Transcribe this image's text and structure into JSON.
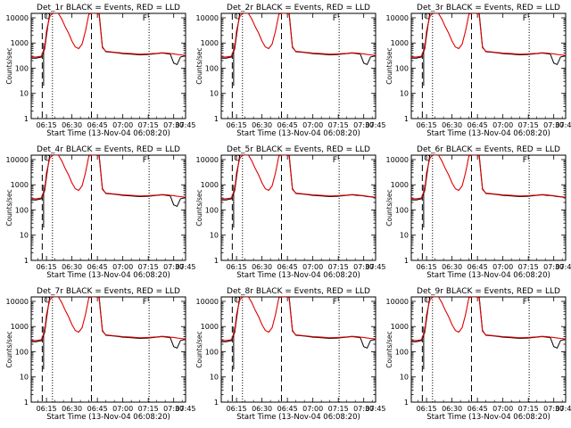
{
  "chart_data": [
    {
      "type": "line",
      "title": "Det_1r BLACK = Events, RED = LLD",
      "xlabel": "Start Time (13-Nov-04 06:08:20)",
      "ylabel": "Counts/sec",
      "xtick_labels": [
        "06:15",
        "06:30",
        "06:45",
        "07:00",
        "07:15",
        "07:30",
        "07:45"
      ],
      "ytick_labels": [
        "1",
        "10",
        "100",
        "1000",
        "10000"
      ],
      "flare_marker": "F",
      "variant": "low",
      "legend": "none",
      "grid": false,
      "yscale": "log",
      "xlim_minutes": [
        6,
        97
      ],
      "ylim": [
        1,
        15000
      ]
    },
    {
      "type": "line",
      "title": "Det_2r BLACK = Events, RED = LLD",
      "xlabel": "Start Time (13-Nov-04 06:08:20)",
      "ylabel": "Counts/sec",
      "xtick_labels": [
        "06:15",
        "06:30",
        "06:45",
        "07:00",
        "07:15",
        "07:30",
        "07:45"
      ],
      "ytick_labels": [
        "1",
        "10",
        "100",
        "1000",
        "10000"
      ],
      "flare_marker": "F",
      "variant": "low",
      "legend": "none",
      "grid": false,
      "yscale": "log",
      "xlim_minutes": [
        6,
        97
      ],
      "ylim": [
        1,
        15000
      ]
    },
    {
      "type": "line",
      "title": "Det_3r BLACK = Events, RED = LLD",
      "xlabel": "Start Time (13-Nov-04 06:08:20)",
      "ylabel": "Counts/sec",
      "xtick_labels": [
        "06:15",
        "06:30",
        "06:45",
        "07:00",
        "07:15",
        "07:30",
        "07:45"
      ],
      "ytick_labels": [
        "1",
        "10",
        "100",
        "1000",
        "10000"
      ],
      "flare_marker": "F",
      "variant": "low",
      "legend": "none",
      "grid": false,
      "yscale": "log",
      "xlim_minutes": [
        6,
        97
      ],
      "ylim": [
        1,
        15000
      ]
    },
    {
      "type": "line",
      "title": "Det_4r BLACK = Events, RED = LLD",
      "xlabel": "Start Time (13-Nov-04 06:08:20)",
      "ylabel": "Counts/sec",
      "xtick_labels": [
        "06:15",
        "06:30",
        "06:45",
        "07:00",
        "07:15",
        "07:30",
        "07:45"
      ],
      "ytick_labels": [
        "1",
        "10",
        "100",
        "1000",
        "10000"
      ],
      "flare_marker": "F",
      "variant": "low",
      "legend": "none",
      "grid": false,
      "yscale": "log",
      "xlim_minutes": [
        6,
        97
      ],
      "ylim": [
        1,
        15000
      ]
    },
    {
      "type": "line",
      "title": "Det_5r BLACK = Events, RED = LLD",
      "xlabel": "Start Time (13-Nov-04 06:08:20)",
      "ylabel": "Counts/sec",
      "xtick_labels": [
        "06:15",
        "06:30",
        "06:45",
        "07:00",
        "07:15",
        "07:30",
        "07:45"
      ],
      "ytick_labels": [
        "1",
        "10",
        "100",
        "1000",
        "10000"
      ],
      "flare_marker": "F",
      "variant": "flat",
      "legend": "none",
      "grid": false,
      "yscale": "log",
      "xlim_minutes": [
        6,
        97
      ],
      "ylim": [
        1,
        15000
      ]
    },
    {
      "type": "line",
      "title": "Det_6r BLACK = Events, RED = LLD",
      "xlabel": "Start Time (13-Nov-04 06:08:20)",
      "ylabel": "Counts/sec",
      "xtick_labels": [
        "06:15",
        "06:30",
        "06:45",
        "07:00",
        "07:15",
        "07:30",
        "07:45"
      ],
      "ytick_labels": [
        "1",
        "10",
        "100",
        "1000",
        "10000"
      ],
      "flare_marker": "F",
      "variant": "flat",
      "legend": "none",
      "grid": false,
      "yscale": "log",
      "xlim_minutes": [
        6,
        97
      ],
      "ylim": [
        1,
        15000
      ]
    },
    {
      "type": "line",
      "title": "Det_7r BLACK = Events, RED = LLD",
      "xlabel": "Start Time (13-Nov-04 06:08:20)",
      "ylabel": "Counts/sec",
      "xtick_labels": [
        "06:15",
        "06:30",
        "06:45",
        "07:00",
        "07:15",
        "07:30",
        "07:45"
      ],
      "ytick_labels": [
        "1",
        "10",
        "100",
        "1000",
        "10000"
      ],
      "flare_marker": "F",
      "variant": "low",
      "legend": "none",
      "grid": false,
      "yscale": "log",
      "xlim_minutes": [
        6,
        97
      ],
      "ylim": [
        1,
        15000
      ]
    },
    {
      "type": "line",
      "title": "Det_8r BLACK = Events, RED = LLD",
      "xlabel": "Start Time (13-Nov-04 06:08:20)",
      "ylabel": "Counts/sec",
      "xtick_labels": [
        "06:15",
        "06:30",
        "06:45",
        "07:00",
        "07:15",
        "07:30",
        "07:45"
      ],
      "ytick_labels": [
        "1",
        "10",
        "100",
        "1000",
        "10000"
      ],
      "flare_marker": "F",
      "variant": "low",
      "legend": "none",
      "grid": false,
      "yscale": "log",
      "xlim_minutes": [
        6,
        97
      ],
      "ylim": [
        1,
        15000
      ]
    },
    {
      "type": "line",
      "title": "Det_9r BLACK = Events, RED = LLD",
      "xlabel": "Start Time (13-Nov-04 06:08:20)",
      "ylabel": "Counts/sec",
      "xtick_labels": [
        "06:15",
        "06:30",
        "06:45",
        "07:00",
        "07:15",
        "07:30",
        "07:45"
      ],
      "ytick_labels": [
        "1",
        "10",
        "100",
        "1000",
        "10000"
      ],
      "flare_marker": "F",
      "variant": "low",
      "legend": "none",
      "grid": false,
      "yscale": "log",
      "xlim_minutes": [
        6,
        97
      ],
      "ylim": [
        1,
        15000
      ]
    }
  ],
  "series_data": {
    "time_minutes": [
      6,
      9,
      12,
      14,
      15,
      17,
      19,
      21,
      22,
      24,
      26,
      28,
      30,
      32,
      34,
      36,
      38,
      40,
      42,
      44,
      46,
      48,
      50,
      55,
      60,
      65,
      70,
      75,
      80,
      83,
      86,
      88,
      90,
      92,
      94,
      97
    ],
    "events": {
      "flat": [
        250,
        250,
        280,
        600,
        2000,
        20000,
        20000,
        20000,
        20000,
        20000,
        20000,
        20000,
        20000,
        20000,
        20000,
        20000,
        20000,
        20000,
        20000,
        20000,
        20000,
        700,
        450,
        420,
        380,
        360,
        340,
        350,
        380,
        400,
        380,
        370,
        360,
        340,
        330,
        310
      ],
      "low": [
        250,
        250,
        280,
        600,
        2000,
        20000,
        20000,
        20000,
        20000,
        20000,
        20000,
        20000,
        20000,
        20000,
        20000,
        20000,
        20000,
        20000,
        20000,
        20000,
        20000,
        700,
        450,
        420,
        380,
        360,
        340,
        350,
        380,
        400,
        380,
        360,
        160,
        140,
        280,
        310
      ]
    },
    "lld": [
      280,
      280,
      300,
      700,
      3000,
      12000,
      15000,
      15000,
      15000,
      9000,
      4500,
      2500,
      1200,
      700,
      600,
      900,
      3000,
      14000,
      15000,
      15000,
      14000,
      650,
      470,
      430,
      400,
      380,
      360,
      370,
      390,
      410,
      400,
      380,
      370,
      350,
      340,
      320
    ],
    "colors": {
      "events": "#000000",
      "lld": "#e00000"
    }
  }
}
